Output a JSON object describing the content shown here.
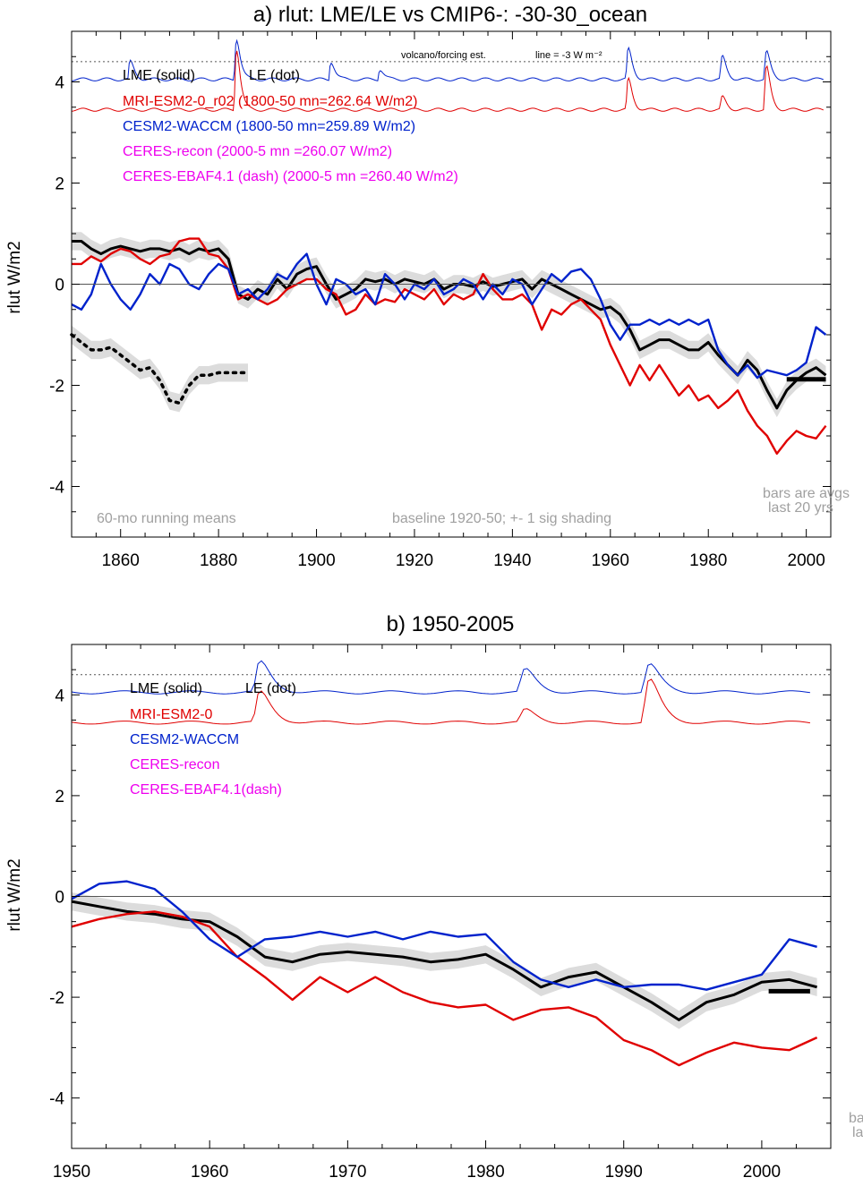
{
  "chart_data": [
    {
      "type": "line",
      "title": "a) rlut: LME/LE vs CMIP6-: -30-30_ocean",
      "xlabel": "",
      "ylabel": "rlut W/m2",
      "xlim": [
        1850,
        2005
      ],
      "ylim": [
        -5,
        5
      ],
      "x_ticks": [
        1860,
        1880,
        1900,
        1920,
        1940,
        1960,
        1980,
        2000
      ],
      "y_ticks": [
        -4,
        -2,
        0,
        2,
        4
      ],
      "y_tick_labels": [
        "-4",
        "-2",
        "0",
        "2",
        "4"
      ],
      "legend": [
        {
          "label": "LME (solid)",
          "color": "#000000"
        },
        {
          "label": "LE (dot)",
          "color": "#000000"
        },
        {
          "label": "MRI-ESM2-0_r02 (1800-50 mn=262.64 W/m2)",
          "color": "#e00000"
        },
        {
          "label": "CESM2-WACCM (1800-50 mn=259.89 W/m2)",
          "color": "#0022cc"
        },
        {
          "label": "CERES-recon (2000-5 mn =260.07 W/m2)",
          "color": "#ee00ee"
        },
        {
          "label": "CERES-EBAF4.1 (dash) (2000-5 mn =260.40 W/m2)",
          "color": "#ee00ee"
        }
      ],
      "annotations": {
        "volcano_label": "volcano/forcing est.",
        "line_label": "line = -3 W m⁻²",
        "running_means": "60-mo running means",
        "baseline": "baseline 1920-50; +- 1 sig shading",
        "bars_note_1": "bars are avgs",
        "bars_note_2": "last 20 yrs"
      },
      "reference_line_y": 4.4,
      "bar": {
        "x": [
          1996,
          2004
        ],
        "y": -1.88
      },
      "series": [
        {
          "name": "LME",
          "style": "solid",
          "color": "#000000",
          "shade": true,
          "x": [
            1850,
            1852,
            1854,
            1856,
            1858,
            1860,
            1862,
            1864,
            1866,
            1868,
            1870,
            1872,
            1874,
            1876,
            1878,
            1880,
            1882,
            1884,
            1886,
            1888,
            1890,
            1892,
            1894,
            1896,
            1898,
            1900,
            1902,
            1904,
            1906,
            1908,
            1910,
            1912,
            1914,
            1916,
            1918,
            1920,
            1922,
            1924,
            1926,
            1928,
            1930,
            1932,
            1934,
            1936,
            1938,
            1940,
            1942,
            1944,
            1946,
            1948,
            1950,
            1952,
            1954,
            1956,
            1958,
            1960,
            1962,
            1964,
            1966,
            1968,
            1970,
            1972,
            1974,
            1976,
            1978,
            1980,
            1982,
            1984,
            1986,
            1988,
            1990,
            1992,
            1994,
            1996,
            1998,
            2000,
            2002,
            2004
          ],
          "y": [
            0.85,
            0.85,
            0.7,
            0.6,
            0.7,
            0.75,
            0.7,
            0.65,
            0.7,
            0.7,
            0.65,
            0.7,
            0.6,
            0.7,
            0.65,
            0.7,
            0.5,
            -0.2,
            -0.3,
            -0.1,
            -0.2,
            0.1,
            -0.1,
            0.2,
            0.3,
            0.35,
            0.0,
            -0.3,
            -0.2,
            -0.1,
            0.1,
            0.05,
            0.1,
            0.0,
            0.1,
            0.05,
            0.0,
            0.1,
            -0.1,
            0.0,
            0.0,
            -0.05,
            0.05,
            -0.05,
            0.0,
            0.05,
            0.1,
            -0.1,
            0.1,
            0.0,
            -0.1,
            -0.2,
            -0.3,
            -0.4,
            -0.5,
            -0.45,
            -0.6,
            -0.9,
            -1.3,
            -1.2,
            -1.1,
            -1.1,
            -1.2,
            -1.3,
            -1.3,
            -1.15,
            -1.4,
            -1.6,
            -1.8,
            -1.5,
            -1.7,
            -2.1,
            -2.45,
            -2.1,
            -1.9,
            -1.75,
            -1.65,
            -1.8
          ]
        },
        {
          "name": "LE",
          "style": "dot",
          "color": "#000000",
          "shade": true,
          "x": [
            1850,
            1852,
            1854,
            1856,
            1858,
            1860,
            1862,
            1864,
            1866,
            1868,
            1870,
            1872,
            1874,
            1876,
            1878,
            1880,
            1882,
            1884,
            1886
          ],
          "y": [
            -1.0,
            -1.15,
            -1.3,
            -1.3,
            -1.25,
            -1.4,
            -1.55,
            -1.7,
            -1.65,
            -1.9,
            -2.3,
            -2.35,
            -2.0,
            -1.8,
            -1.8,
            -1.75,
            -1.75,
            -1.75,
            -1.75
          ]
        },
        {
          "name": "MRI-ESM2-0",
          "style": "solid",
          "color": "#e00000",
          "x": [
            1850,
            1852,
            1854,
            1856,
            1858,
            1860,
            1862,
            1864,
            1866,
            1868,
            1870,
            1872,
            1874,
            1876,
            1878,
            1880,
            1882,
            1884,
            1886,
            1888,
            1890,
            1892,
            1894,
            1896,
            1898,
            1900,
            1902,
            1904,
            1906,
            1908,
            1910,
            1912,
            1914,
            1916,
            1918,
            1920,
            1922,
            1924,
            1926,
            1928,
            1930,
            1932,
            1934,
            1936,
            1938,
            1940,
            1942,
            1944,
            1946,
            1948,
            1950,
            1952,
            1954,
            1956,
            1958,
            1960,
            1962,
            1964,
            1966,
            1968,
            1970,
            1972,
            1974,
            1976,
            1978,
            1980,
            1982,
            1984,
            1986,
            1988,
            1990,
            1992,
            1994,
            1996,
            1998,
            2000,
            2002,
            2004
          ],
          "y": [
            0.4,
            0.4,
            0.55,
            0.45,
            0.6,
            0.7,
            0.65,
            0.5,
            0.4,
            0.55,
            0.6,
            0.85,
            0.9,
            0.9,
            0.6,
            0.55,
            0.3,
            -0.3,
            -0.2,
            -0.3,
            -0.4,
            -0.3,
            -0.1,
            0.0,
            0.1,
            0.1,
            -0.1,
            -0.2,
            -0.6,
            -0.5,
            -0.2,
            -0.4,
            -0.3,
            -0.35,
            -0.1,
            -0.2,
            -0.3,
            -0.1,
            -0.4,
            -0.2,
            -0.3,
            -0.2,
            0.2,
            -0.1,
            -0.3,
            -0.3,
            -0.2,
            -0.4,
            -0.9,
            -0.5,
            -0.6,
            -0.4,
            -0.3,
            -0.5,
            -0.7,
            -1.2,
            -1.6,
            -2.0,
            -1.6,
            -1.9,
            -1.6,
            -1.9,
            -2.2,
            -2.0,
            -2.3,
            -2.2,
            -2.45,
            -2.3,
            -2.1,
            -2.5,
            -2.8,
            -3.0,
            -3.35,
            -3.1,
            -2.9,
            -3.0,
            -3.05,
            -2.8
          ]
        },
        {
          "name": "CESM2-WACCM",
          "style": "solid",
          "color": "#0022cc",
          "x": [
            1850,
            1852,
            1854,
            1856,
            1858,
            1860,
            1862,
            1864,
            1866,
            1868,
            1870,
            1872,
            1874,
            1876,
            1878,
            1880,
            1882,
            1884,
            1886,
            1888,
            1890,
            1892,
            1894,
            1896,
            1898,
            1900,
            1902,
            1904,
            1906,
            1908,
            1910,
            1912,
            1914,
            1916,
            1918,
            1920,
            1922,
            1924,
            1926,
            1928,
            1930,
            1932,
            1934,
            1936,
            1938,
            1940,
            1942,
            1944,
            1946,
            1948,
            1950,
            1952,
            1954,
            1956,
            1958,
            1960,
            1962,
            1964,
            1966,
            1968,
            1970,
            1972,
            1974,
            1976,
            1978,
            1980,
            1982,
            1984,
            1986,
            1988,
            1990,
            1992,
            1994,
            1996,
            1998,
            2000,
            2002,
            2004
          ],
          "y": [
            -0.4,
            -0.5,
            -0.2,
            0.4,
            0.0,
            -0.3,
            -0.5,
            -0.2,
            0.2,
            0.0,
            0.4,
            0.3,
            0.0,
            -0.1,
            0.2,
            0.4,
            0.3,
            -0.2,
            -0.1,
            -0.3,
            -0.1,
            0.2,
            0.1,
            0.4,
            0.6,
            0.0,
            -0.4,
            0.1,
            0.0,
            -0.2,
            -0.1,
            -0.4,
            0.2,
            0.0,
            -0.3,
            0.0,
            -0.1,
            0.1,
            -0.2,
            -0.1,
            0.1,
            0.0,
            -0.3,
            0.0,
            -0.2,
            0.1,
            0.0,
            -0.4,
            -0.1,
            0.2,
            0.05,
            0.25,
            0.3,
            0.1,
            -0.3,
            -0.8,
            -1.1,
            -0.8,
            -0.8,
            -0.7,
            -0.8,
            -0.7,
            -0.8,
            -0.7,
            -0.8,
            -0.7,
            -1.3,
            -1.6,
            -1.8,
            -1.6,
            -1.85,
            -1.7,
            -1.75,
            -1.8,
            -1.7,
            -1.55,
            -0.85,
            -1.0
          ]
        }
      ]
    },
    {
      "type": "line",
      "title": "b) 1950-2005",
      "xlabel": "",
      "ylabel": "rlut W/m2",
      "xlim": [
        1950,
        2005
      ],
      "ylim": [
        -5,
        5
      ],
      "x_ticks": [
        1950,
        1960,
        1970,
        1980,
        1990,
        2000
      ],
      "y_ticks": [
        -4,
        -2,
        0,
        2,
        4
      ],
      "y_tick_labels": [
        "-4",
        "-2",
        "0",
        "2",
        "4"
      ],
      "legend": [
        {
          "label": "LME (solid)",
          "color": "#000000"
        },
        {
          "label": "LE (dot)",
          "color": "#000000"
        },
        {
          "label": "MRI-ESM2-0",
          "color": "#e00000"
        },
        {
          "label": "CESM2-WACCM",
          "color": "#0022cc"
        },
        {
          "label": "CERES-recon",
          "color": "#ee00ee"
        },
        {
          "label": "CERES-EBAF4.1(dash)",
          "color": "#ee00ee"
        }
      ],
      "annotations": {
        "bars_note_1": "ba",
        "bars_note_2": "la"
      },
      "reference_line_y": 4.4,
      "bar": {
        "x": [
          2000.5,
          2003.5
        ],
        "y": -1.88
      },
      "series": [
        {
          "name": "LME",
          "style": "solid",
          "color": "#000000",
          "shade": true,
          "x": [
            1950,
            1952,
            1954,
            1956,
            1958,
            1960,
            1962,
            1964,
            1966,
            1968,
            1970,
            1972,
            1974,
            1976,
            1978,
            1980,
            1982,
            1984,
            1986,
            1988,
            1990,
            1992,
            1994,
            1996,
            1998,
            2000,
            2002,
            2004
          ],
          "y": [
            -0.1,
            -0.2,
            -0.3,
            -0.35,
            -0.45,
            -0.5,
            -0.8,
            -1.2,
            -1.3,
            -1.15,
            -1.1,
            -1.15,
            -1.2,
            -1.3,
            -1.25,
            -1.15,
            -1.45,
            -1.8,
            -1.6,
            -1.5,
            -1.8,
            -2.1,
            -2.45,
            -2.1,
            -1.95,
            -1.7,
            -1.65,
            -1.8
          ]
        },
        {
          "name": "MRI-ESM2-0",
          "style": "solid",
          "color": "#e00000",
          "x": [
            1950,
            1952,
            1954,
            1956,
            1958,
            1960,
            1962,
            1964,
            1966,
            1968,
            1970,
            1972,
            1974,
            1976,
            1978,
            1980,
            1982,
            1984,
            1986,
            1988,
            1990,
            1992,
            1994,
            1996,
            1998,
            2000,
            2002,
            2004
          ],
          "y": [
            -0.6,
            -0.45,
            -0.35,
            -0.3,
            -0.4,
            -0.6,
            -1.2,
            -1.6,
            -2.05,
            -1.6,
            -1.9,
            -1.6,
            -1.9,
            -2.1,
            -2.2,
            -2.15,
            -2.45,
            -2.25,
            -2.2,
            -2.4,
            -2.85,
            -3.05,
            -3.35,
            -3.1,
            -2.9,
            -3.0,
            -3.05,
            -2.8
          ]
        },
        {
          "name": "CESM2-WACCM",
          "style": "solid",
          "color": "#0022cc",
          "x": [
            1950,
            1952,
            1954,
            1956,
            1958,
            1960,
            1962,
            1964,
            1966,
            1968,
            1970,
            1972,
            1974,
            1976,
            1978,
            1980,
            1982,
            1984,
            1986,
            1988,
            1990,
            1992,
            1994,
            1996,
            1998,
            2000,
            2002,
            2004
          ],
          "y": [
            -0.05,
            0.25,
            0.3,
            0.15,
            -0.3,
            -0.85,
            -1.2,
            -0.85,
            -0.8,
            -0.7,
            -0.8,
            -0.7,
            -0.85,
            -0.7,
            -0.8,
            -0.75,
            -1.3,
            -1.65,
            -1.8,
            -1.65,
            -1.8,
            -1.75,
            -1.75,
            -1.85,
            -1.7,
            -1.55,
            -0.85,
            -1.0
          ]
        }
      ]
    }
  ]
}
